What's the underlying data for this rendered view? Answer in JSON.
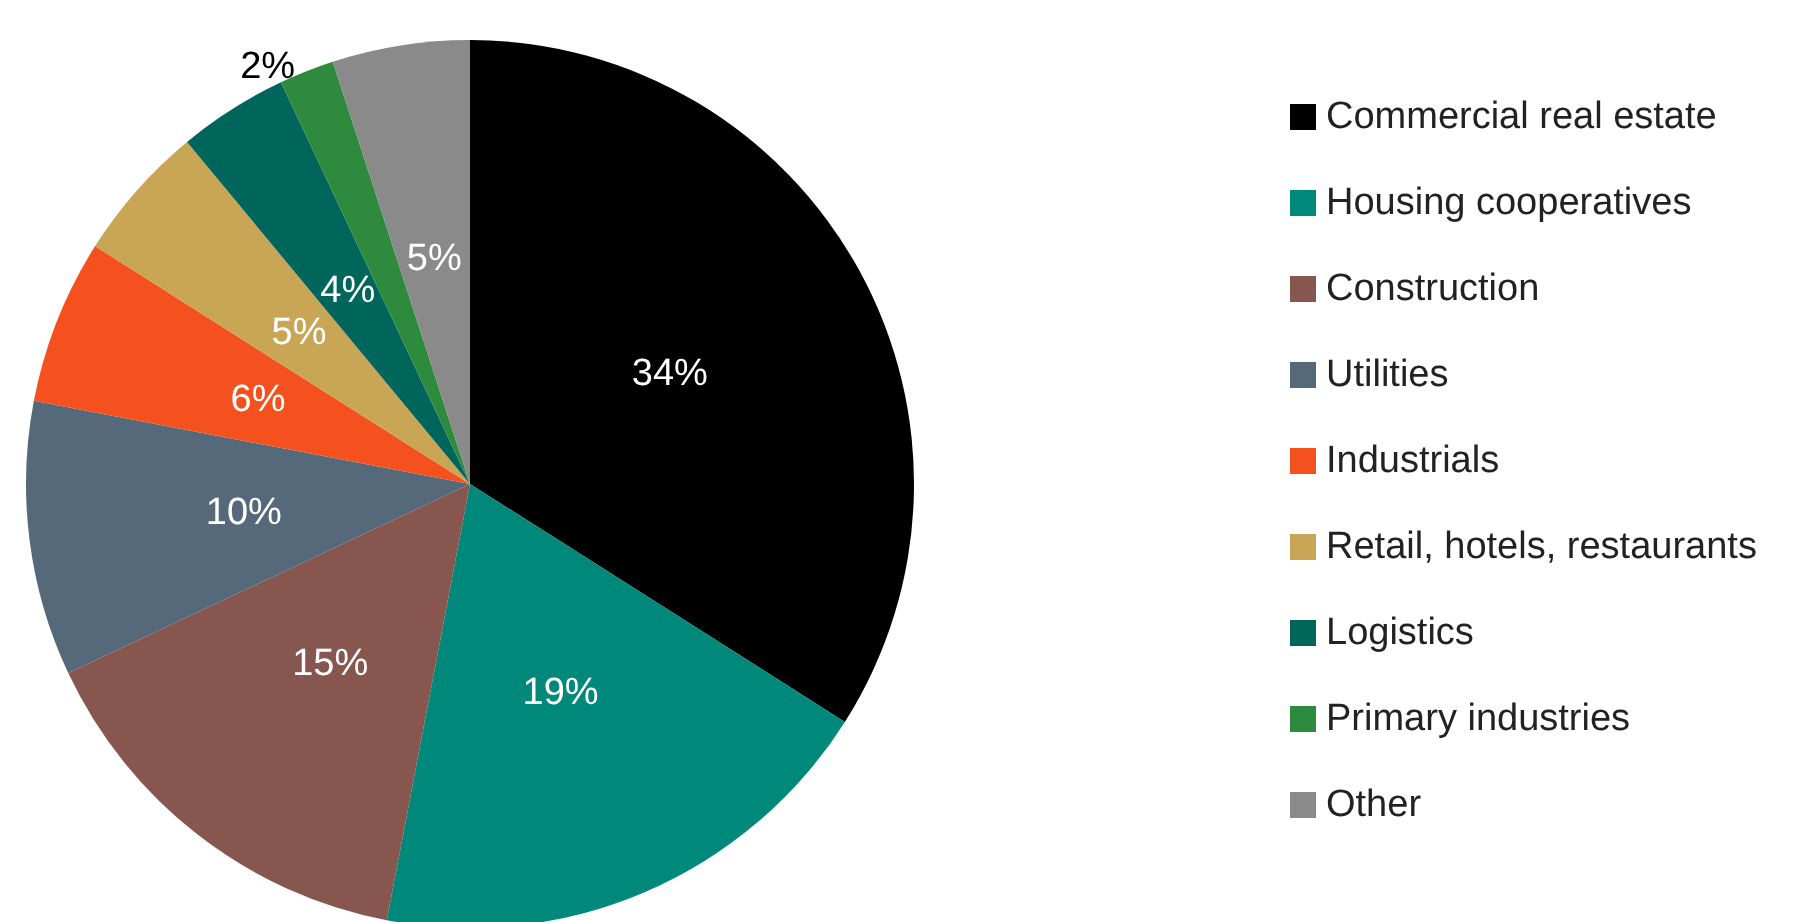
{
  "chart_data": {
    "type": "pie",
    "categories": [
      "Commercial real estate",
      "Housing cooperatives",
      "Construction",
      "Utilities",
      "Industrials",
      "Retail, hotels, restaurants",
      "Logistics",
      "Primary industries",
      "Other"
    ],
    "values": [
      34,
      19,
      15,
      10,
      6,
      5,
      4,
      2,
      5
    ],
    "colors": [
      "#000000",
      "#00897a",
      "#87564f",
      "#55697a",
      "#f4511e",
      "#c9a655",
      "#00665b",
      "#2e8b3d",
      "#8a8a8a"
    ],
    "value_labels": [
      "34%",
      "19%",
      "15%",
      "10%",
      "6%",
      "5%",
      "4%",
      "2%",
      "5%"
    ],
    "legend": "right"
  }
}
